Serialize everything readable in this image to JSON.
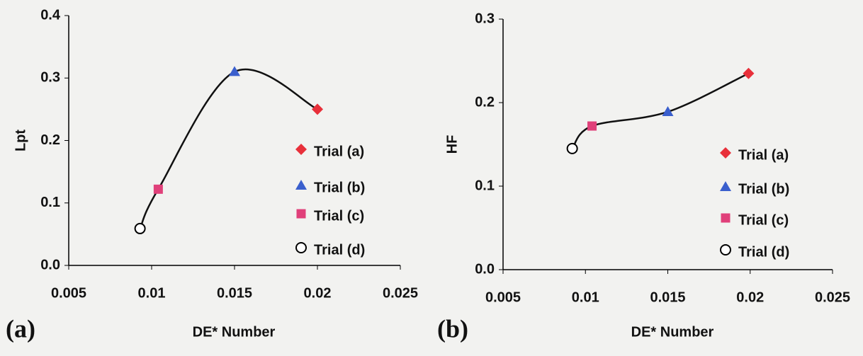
{
  "chart_data": [
    {
      "type": "scatter",
      "panel_label": "(a)",
      "xlabel": "DE* Number",
      "ylabel": "Lpt",
      "xlim": [
        0.005,
        0.025
      ],
      "xticks": [
        0.005,
        0.01,
        0.015,
        0.02,
        0.025
      ],
      "ylim": [
        0,
        0.4
      ],
      "yticks": [
        {
          "value": 0,
          "label": "0.0"
        },
        0.1,
        0.2,
        0.3,
        0.4
      ],
      "smooth_line": true,
      "series": [
        {
          "name": "Trial (a)",
          "color": "#e8303a",
          "marker": "diamond",
          "x": [
            0.02
          ],
          "values": [
            0.25
          ]
        },
        {
          "name": "Trial (b)",
          "color": "#3a5fcd",
          "marker": "triangle",
          "x": [
            0.015
          ],
          "values": [
            0.31
          ]
        },
        {
          "name": "Trial (c)",
          "color": "#e0407a",
          "marker": "square",
          "x": [
            0.0104
          ],
          "values": [
            0.122
          ]
        },
        {
          "name": "Trial (d)",
          "color": "#000000",
          "marker": "circle",
          "x": [
            0.0093
          ],
          "values": [
            0.059
          ]
        }
      ]
    },
    {
      "type": "scatter",
      "panel_label": "(b)",
      "xlabel": "DE* Number",
      "ylabel": "HF",
      "xlim": [
        0.005,
        0.025
      ],
      "xticks": [
        0.005,
        0.01,
        0.015,
        0.02,
        0.025
      ],
      "ylim": [
        0,
        0.3
      ],
      "yticks": [
        {
          "value": 0,
          "label": "0.0"
        },
        0.1,
        0.2,
        0.3
      ],
      "smooth_line": true,
      "series": [
        {
          "name": "Trial (a)",
          "color": "#e8303a",
          "marker": "diamond",
          "x": [
            0.0199
          ],
          "values": [
            0.235
          ]
        },
        {
          "name": "Trial (b)",
          "color": "#3a5fcd",
          "marker": "triangle",
          "x": [
            0.015
          ],
          "values": [
            0.189
          ]
        },
        {
          "name": "Trial (c)",
          "color": "#e0407a",
          "marker": "square",
          "x": [
            0.0104
          ],
          "values": [
            0.172
          ]
        },
        {
          "name": "Trial (d)",
          "color": "#000000",
          "marker": "circle",
          "x": [
            0.0092
          ],
          "values": [
            0.145
          ]
        }
      ]
    }
  ]
}
